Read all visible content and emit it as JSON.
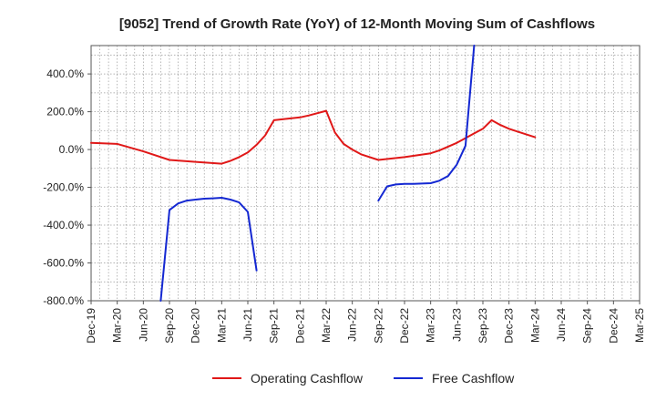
{
  "chart_data": {
    "type": "line",
    "title": "[9052]  Trend of Growth Rate (YoY) of 12-Month Moving Sum of Cashflows",
    "xlabel": "",
    "ylabel": "",
    "ylim": [
      -800,
      550
    ],
    "yticks": [
      -800,
      -600,
      -400,
      -200,
      0,
      200,
      400
    ],
    "y_tick_labels": [
      "-800.0%",
      "-600.0%",
      "-400.0%",
      "-200.0%",
      "0.0%",
      "200.0%",
      "400.0%"
    ],
    "x_range": [
      "2019-12",
      "2025-03"
    ],
    "x_tick_labels": [
      "Dec-19",
      "Mar-20",
      "Jun-20",
      "Sep-20",
      "Dec-20",
      "Mar-21",
      "Jun-21",
      "Sep-21",
      "Dec-21",
      "Mar-22",
      "Jun-22",
      "Sep-22",
      "Dec-22",
      "Mar-23",
      "Jun-23",
      "Sep-23",
      "Dec-23",
      "Mar-24",
      "Jun-24",
      "Sep-24",
      "Dec-24",
      "Mar-25"
    ],
    "grid": true,
    "legend_position": "bottom-center",
    "series": [
      {
        "name": "Operating Cashflow",
        "color": "#e01818",
        "points": [
          [
            "2019-12",
            35
          ],
          [
            "2020-03",
            30
          ],
          [
            "2020-06",
            -10
          ],
          [
            "2020-09",
            -55
          ],
          [
            "2020-12",
            -65
          ],
          [
            "2021-03",
            -75
          ],
          [
            "2021-04",
            -60
          ],
          [
            "2021-05",
            -40
          ],
          [
            "2021-06",
            -15
          ],
          [
            "2021-07",
            25
          ],
          [
            "2021-08",
            75
          ],
          [
            "2021-09",
            155
          ],
          [
            "2021-12",
            170
          ],
          [
            "2022-01",
            180
          ],
          [
            "2022-03",
            205
          ],
          [
            "2022-04",
            90
          ],
          [
            "2022-05",
            30
          ],
          [
            "2022-06",
            0
          ],
          [
            "2022-07",
            -25
          ],
          [
            "2022-09",
            -55
          ],
          [
            "2022-12",
            -40
          ],
          [
            "2023-03",
            -20
          ],
          [
            "2023-04",
            -5
          ],
          [
            "2023-06",
            35
          ],
          [
            "2023-08",
            85
          ],
          [
            "2023-09",
            110
          ],
          [
            "2023-10",
            155
          ],
          [
            "2023-11",
            130
          ],
          [
            "2023-12",
            110
          ],
          [
            "2024-01",
            95
          ],
          [
            "2024-03",
            65
          ]
        ]
      },
      {
        "name": "Free Cashflow",
        "color": "#1428d2",
        "segments": [
          [
            [
              "2020-08",
              -800
            ],
            [
              "2020-09",
              -320
            ],
            [
              "2020-10",
              -285
            ],
            [
              "2020-11",
              -270
            ],
            [
              "2020-12",
              -265
            ],
            [
              "2021-01",
              -260
            ],
            [
              "2021-02",
              -258
            ],
            [
              "2021-03",
              -255
            ],
            [
              "2021-04",
              -265
            ],
            [
              "2021-05",
              -280
            ],
            [
              "2021-06",
              -330
            ],
            [
              "2021-07",
              -640
            ]
          ],
          [
            [
              "2022-09",
              -270
            ],
            [
              "2022-10",
              -195
            ],
            [
              "2022-11",
              -185
            ],
            [
              "2022-12",
              -182
            ],
            [
              "2023-01",
              -182
            ],
            [
              "2023-02",
              -180
            ],
            [
              "2023-03",
              -178
            ],
            [
              "2023-04",
              -165
            ],
            [
              "2023-05",
              -140
            ],
            [
              "2023-06",
              -80
            ],
            [
              "2023-07",
              20
            ],
            [
              "2023-08",
              550
            ]
          ]
        ]
      }
    ]
  }
}
